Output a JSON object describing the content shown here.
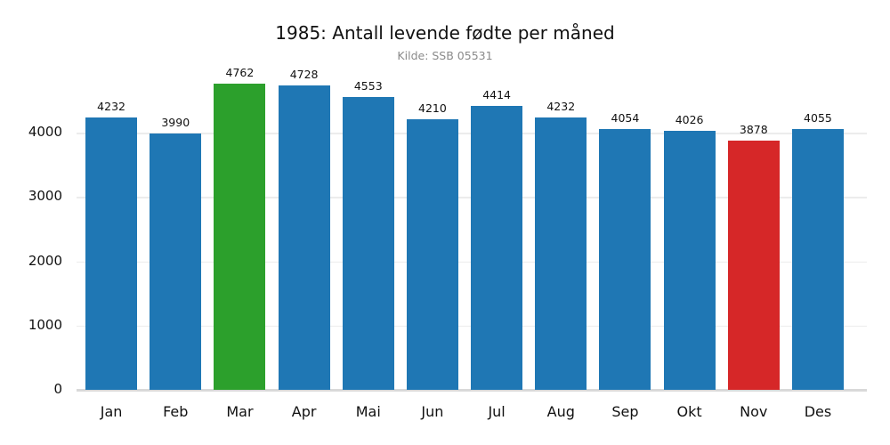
{
  "chart_data": {
    "type": "bar",
    "title": "1985: Antall levende fødte per måned",
    "subtitle": "Kilde: SSB 05531",
    "xlabel": "",
    "ylabel": "",
    "categories": [
      "Jan",
      "Feb",
      "Mar",
      "Apr",
      "Mai",
      "Jun",
      "Jul",
      "Aug",
      "Sep",
      "Okt",
      "Nov",
      "Des"
    ],
    "values": [
      4232,
      3990,
      4762,
      4728,
      4553,
      4210,
      4414,
      4232,
      4054,
      4026,
      3878,
      4055
    ],
    "value_labels": [
      "4232",
      "3990",
      "4762",
      "4728",
      "4553",
      "4210",
      "4414",
      "4232",
      "4054",
      "4026",
      "3878",
      "4055"
    ],
    "yticks": [
      "0",
      "1000",
      "2000",
      "3000",
      "4000"
    ],
    "ylim": [
      0,
      5000
    ],
    "grid": true,
    "legend": null,
    "colors": {
      "default": "#1f77b4",
      "max": "#2ca02c",
      "min": "#d62728"
    },
    "highlight": {
      "max_index": 2,
      "min_index": 10
    }
  }
}
